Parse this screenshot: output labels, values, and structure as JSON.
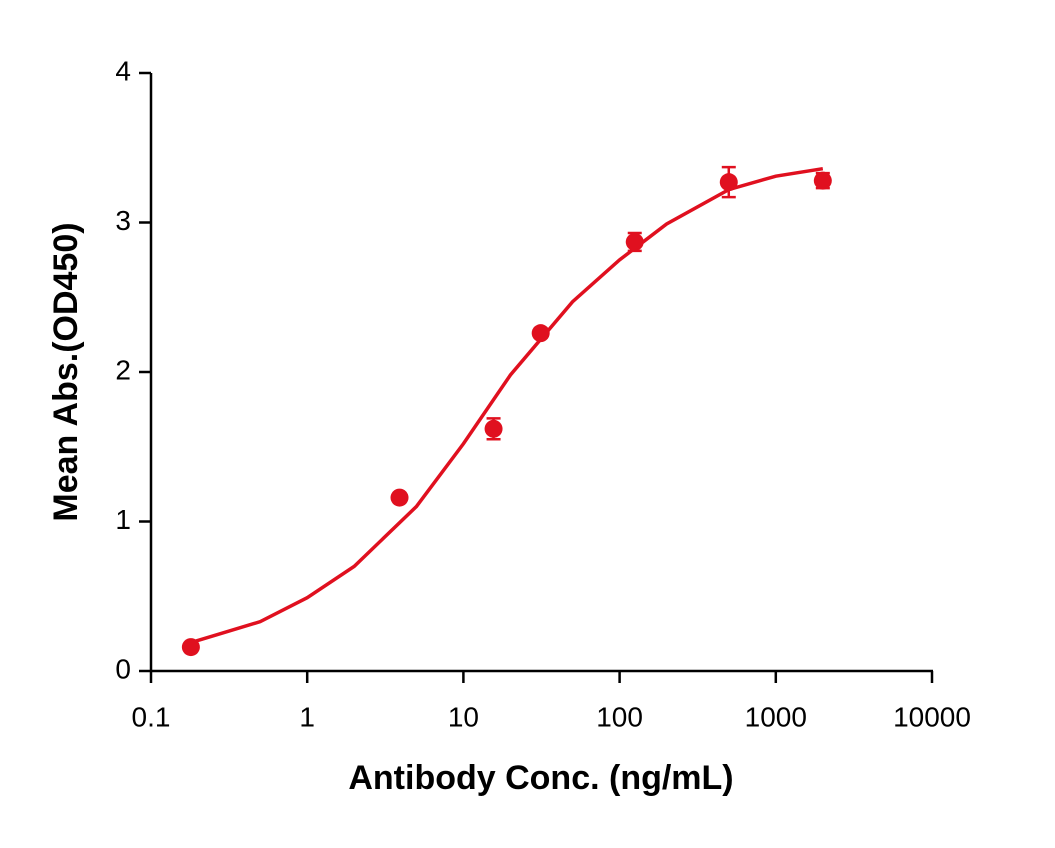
{
  "chart_data": {
    "type": "scatter",
    "xlabel": "Antibody Conc. (ng/mL)",
    "ylabel": "Mean Abs.(OD450)",
    "xscale": "log",
    "xlim": [
      0.1,
      10000
    ],
    "xticks": [
      0.1,
      1,
      10,
      100,
      1000,
      10000
    ],
    "ylim": [
      0,
      4
    ],
    "yticks": [
      0,
      1,
      2,
      3,
      4
    ],
    "color": "#e0101f",
    "points": {
      "x": [
        0.18,
        3.9,
        15.6,
        31.25,
        125,
        500,
        2000
      ],
      "values": [
        0.16,
        1.16,
        1.62,
        2.26,
        2.87,
        3.27,
        3.28
      ],
      "errors": [
        0.02,
        0.03,
        0.07,
        0.03,
        0.06,
        0.1,
        0.05
      ]
    },
    "fit": {
      "x": [
        0.18,
        0.5,
        1,
        2,
        5,
        10,
        20,
        50,
        100,
        200,
        500,
        1000,
        2000
      ],
      "values": [
        0.19,
        0.33,
        0.49,
        0.7,
        1.1,
        1.52,
        1.98,
        2.47,
        2.75,
        2.99,
        3.22,
        3.31,
        3.36
      ]
    }
  }
}
